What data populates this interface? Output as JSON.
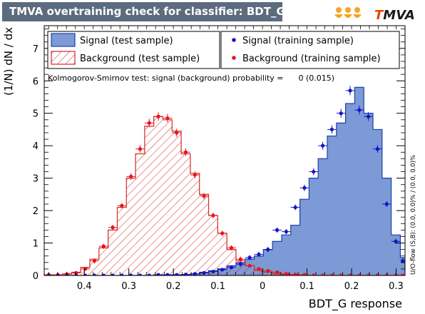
{
  "title": "TMVA overtraining check for classifier: BDT_G",
  "logo_text": "TMVA",
  "ks_text": "Kolmogorov-Smirnov test: signal (background) probability =      0 (0.015)",
  "overflow_text": "U/O-flow (S,B): (0.0, 0.0)% / (0.0, 0.0)%",
  "colors": {
    "signal_fill": "#7b9ad6",
    "signal_line": "#1f3fa8",
    "background_line": "#d62728",
    "signal_marker": "#1414c8",
    "background_marker": "#e8141a",
    "title_bg": "#5c6b7d"
  },
  "chart_data": {
    "type": "histogram",
    "xlabel": "BDT_G response",
    "ylabel": "(1/N) dN / dx",
    "xlim": [
      -0.49,
      0.32
    ],
    "ylim": [
      0,
      7.7
    ],
    "xticks": [
      -0.4,
      -0.3,
      -0.2,
      -0.1,
      0,
      0.1,
      0.2,
      0.3
    ],
    "xtick_labels": [
      "0.4",
      "0.3",
      "0.2",
      "0.1",
      "0",
      "0.1",
      "0.2",
      "0.3"
    ],
    "yticks": [
      0,
      1,
      2,
      3,
      4,
      5,
      6,
      7
    ],
    "ytick_labels": [
      "0",
      "1",
      "2",
      "3",
      "4",
      "5",
      "6",
      "7"
    ],
    "bin_edges": [
      -0.49,
      -0.4695,
      -0.449,
      -0.4285,
      -0.408,
      -0.3875,
      -0.367,
      -0.3465,
      -0.326,
      -0.3055,
      -0.285,
      -0.2645,
      -0.244,
      -0.2235,
      -0.203,
      -0.1825,
      -0.162,
      -0.1415,
      -0.121,
      -0.1005,
      -0.08,
      -0.0595,
      -0.039,
      -0.0185,
      0.002,
      0.0225,
      0.043,
      0.0635,
      0.084,
      0.1045,
      0.125,
      0.1455,
      0.166,
      0.1865,
      0.207,
      0.2275,
      0.248,
      0.2685,
      0.289,
      0.3095,
      0.32
    ],
    "series": [
      {
        "name": "Signal (test sample)",
        "kind": "filled histogram",
        "values": [
          0,
          0,
          0,
          0,
          0,
          0,
          0,
          0,
          0,
          0,
          0,
          0,
          0.02,
          0.02,
          0.02,
          0.03,
          0.05,
          0.1,
          0.15,
          0.2,
          0.3,
          0.4,
          0.5,
          0.6,
          0.8,
          1.05,
          1.25,
          1.55,
          2.35,
          3.0,
          3.6,
          4.3,
          4.7,
          5.3,
          5.8,
          5.0,
          4.5,
          3.0,
          1.25,
          0.55
        ]
      },
      {
        "name": "Background (test sample)",
        "kind": "hatched histogram",
        "values": [
          0.02,
          0.02,
          0.05,
          0.1,
          0.25,
          0.5,
          0.85,
          1.4,
          2.1,
          3.0,
          3.75,
          4.6,
          4.9,
          4.8,
          4.45,
          3.75,
          3.15,
          2.5,
          1.85,
          1.3,
          0.8,
          0.45,
          0.3,
          0.15,
          0.1,
          0.05,
          0.03,
          0.02,
          0,
          0,
          0,
          0,
          0,
          0,
          0,
          0,
          0,
          0,
          0,
          0
        ]
      },
      {
        "name": "Signal (training sample)",
        "kind": "points",
        "values": [
          0,
          0,
          0,
          0,
          0,
          0,
          0,
          0,
          0,
          0,
          0,
          0,
          0.02,
          0.02,
          0.02,
          0.03,
          0.05,
          0.08,
          0.12,
          0.18,
          0.25,
          0.35,
          0.55,
          0.65,
          0.8,
          1.4,
          1.35,
          2.1,
          2.7,
          3.2,
          4.0,
          4.5,
          5.0,
          5.7,
          5.1,
          4.9,
          3.9,
          2.2,
          1.05,
          0.45
        ]
      },
      {
        "name": "Background (training sample)",
        "kind": "points",
        "values": [
          0.02,
          0.02,
          0.04,
          0.08,
          0.2,
          0.45,
          0.9,
          1.48,
          2.15,
          3.05,
          3.9,
          4.7,
          4.9,
          4.85,
          4.4,
          3.8,
          3.1,
          2.45,
          1.85,
          1.3,
          0.85,
          0.5,
          0.3,
          0.2,
          0.14,
          0.1,
          0.05,
          0.03,
          0.02,
          0,
          0,
          0,
          0,
          0,
          0,
          0,
          0,
          0,
          0,
          0
        ]
      }
    ],
    "legend": [
      "Signal (test sample)",
      "Signal (training sample)",
      "Background (test sample)",
      "Background (training sample)"
    ]
  }
}
